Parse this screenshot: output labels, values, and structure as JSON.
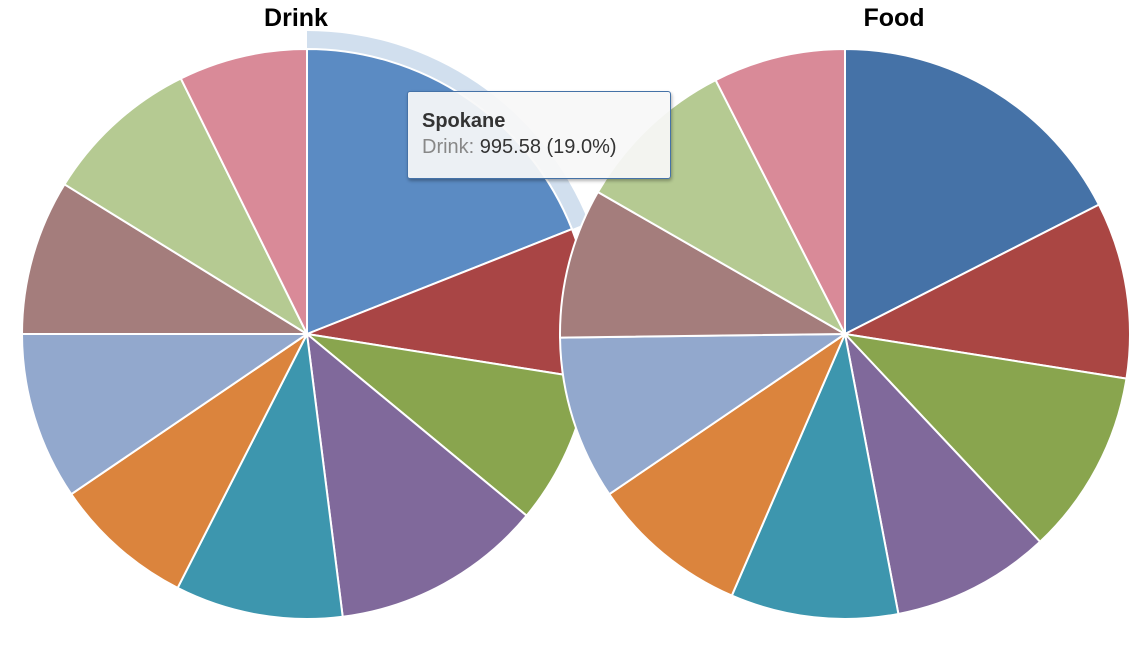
{
  "chart_data": [
    {
      "type": "pie",
      "title": "Drink",
      "slices": [
        {
          "label": "Spokane",
          "value": 995.58,
          "percent": 19.0,
          "color": "#5B8BC3",
          "hovered": true
        },
        {
          "label": "",
          "percent": 8.5,
          "color": "#A94545"
        },
        {
          "label": "",
          "percent": 8.5,
          "color": "#89A54E"
        },
        {
          "label": "",
          "percent": 12.0,
          "color": "#80699B"
        },
        {
          "label": "",
          "percent": 9.5,
          "color": "#3D96AE"
        },
        {
          "label": "",
          "percent": 8.0,
          "color": "#DB843D"
        },
        {
          "label": "",
          "percent": 9.5,
          "color": "#92A8CD"
        },
        {
          "label": "",
          "percent": 8.8,
          "color": "#A47D7C"
        },
        {
          "label": "",
          "percent": 8.9,
          "color": "#B5CA92"
        },
        {
          "label": "",
          "percent": 7.3,
          "color": "#D98A98"
        }
      ]
    },
    {
      "type": "pie",
      "title": "Food",
      "slices": [
        {
          "label": "",
          "percent": 17.5,
          "color": "#4572A7"
        },
        {
          "label": "",
          "percent": 10.0,
          "color": "#AA4643"
        },
        {
          "label": "",
          "percent": 10.5,
          "color": "#89A54E"
        },
        {
          "label": "",
          "percent": 9.0,
          "color": "#80699B"
        },
        {
          "label": "",
          "percent": 9.5,
          "color": "#3D96AE"
        },
        {
          "label": "",
          "percent": 9.0,
          "color": "#DB843D"
        },
        {
          "label": "",
          "percent": 9.3,
          "color": "#92A8CD"
        },
        {
          "label": "",
          "percent": 8.5,
          "color": "#A47D7C"
        },
        {
          "label": "",
          "percent": 9.2,
          "color": "#B5CA92"
        },
        {
          "label": "",
          "percent": 7.5,
          "color": "#D98A98"
        }
      ]
    }
  ],
  "tooltip": {
    "title": "Spokane",
    "series": "Drink:",
    "value_text": "995.58 (19.0%)"
  }
}
